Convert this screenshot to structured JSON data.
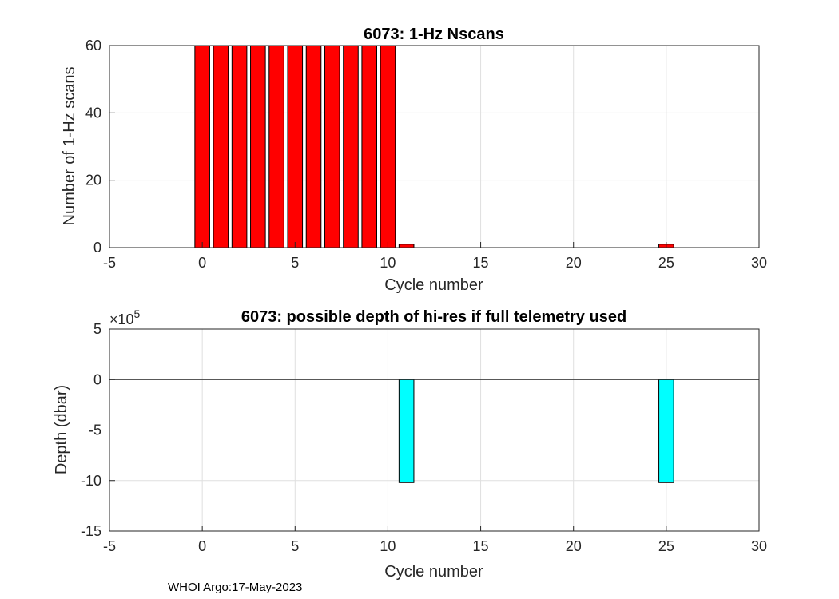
{
  "footer": "WHOI Argo:17-May-2023",
  "chart_data": [
    {
      "type": "bar",
      "title": "6073: 1-Hz Nscans",
      "xlabel": "Cycle number",
      "ylabel": "Number of 1-Hz scans",
      "xlim": [
        -5,
        30
      ],
      "ylim": [
        0,
        60
      ],
      "xticks": [
        -5,
        0,
        5,
        10,
        15,
        20,
        25,
        30
      ],
      "yticks": [
        0,
        20,
        40,
        60
      ],
      "grid": true,
      "bar_color": "#ff0000",
      "x": [
        0,
        1,
        2,
        3,
        4,
        5,
        6,
        7,
        8,
        9,
        10,
        11,
        25
      ],
      "values": [
        60,
        60,
        60,
        60,
        60,
        60,
        60,
        60,
        60,
        60,
        60,
        1,
        1
      ]
    },
    {
      "type": "bar",
      "title": "6073: possible depth of hi-res if full telemetry used",
      "xlabel": "Cycle number",
      "ylabel": "Depth (dbar)",
      "xlim": [
        -5,
        30
      ],
      "ylim": [
        -15,
        5
      ],
      "y_exponent_label": "×10",
      "y_exponent": "5",
      "xticks": [
        -5,
        0,
        5,
        10,
        15,
        20,
        25,
        30
      ],
      "yticks": [
        -15,
        -10,
        -5,
        0,
        5
      ],
      "grid": true,
      "bar_color": "#00ffff",
      "x": [
        11,
        25
      ],
      "values": [
        -10.2,
        -10.2
      ]
    }
  ]
}
